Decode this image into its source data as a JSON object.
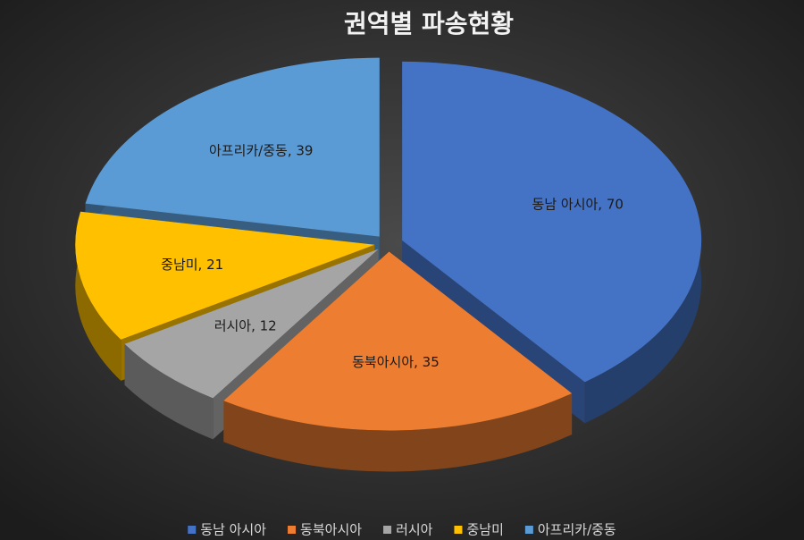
{
  "chart_data": {
    "type": "pie",
    "title": "권역별 파송현황",
    "categories": [
      "동남 아시아",
      "동북아시아",
      "러시아",
      "중남미",
      "아프리카/중동"
    ],
    "values": [
      70,
      35,
      12,
      21,
      39
    ],
    "value_labels": [
      "동남 아시아, 70",
      "동북아시아, 35",
      "러시아, 12",
      "중남미, 21",
      "아프리카/중동, 39"
    ],
    "colors": [
      "#4472c4",
      "#ed7d31",
      "#a5a5a5",
      "#ffc000",
      "#5b9bd5"
    ],
    "legend": "bottom"
  }
}
